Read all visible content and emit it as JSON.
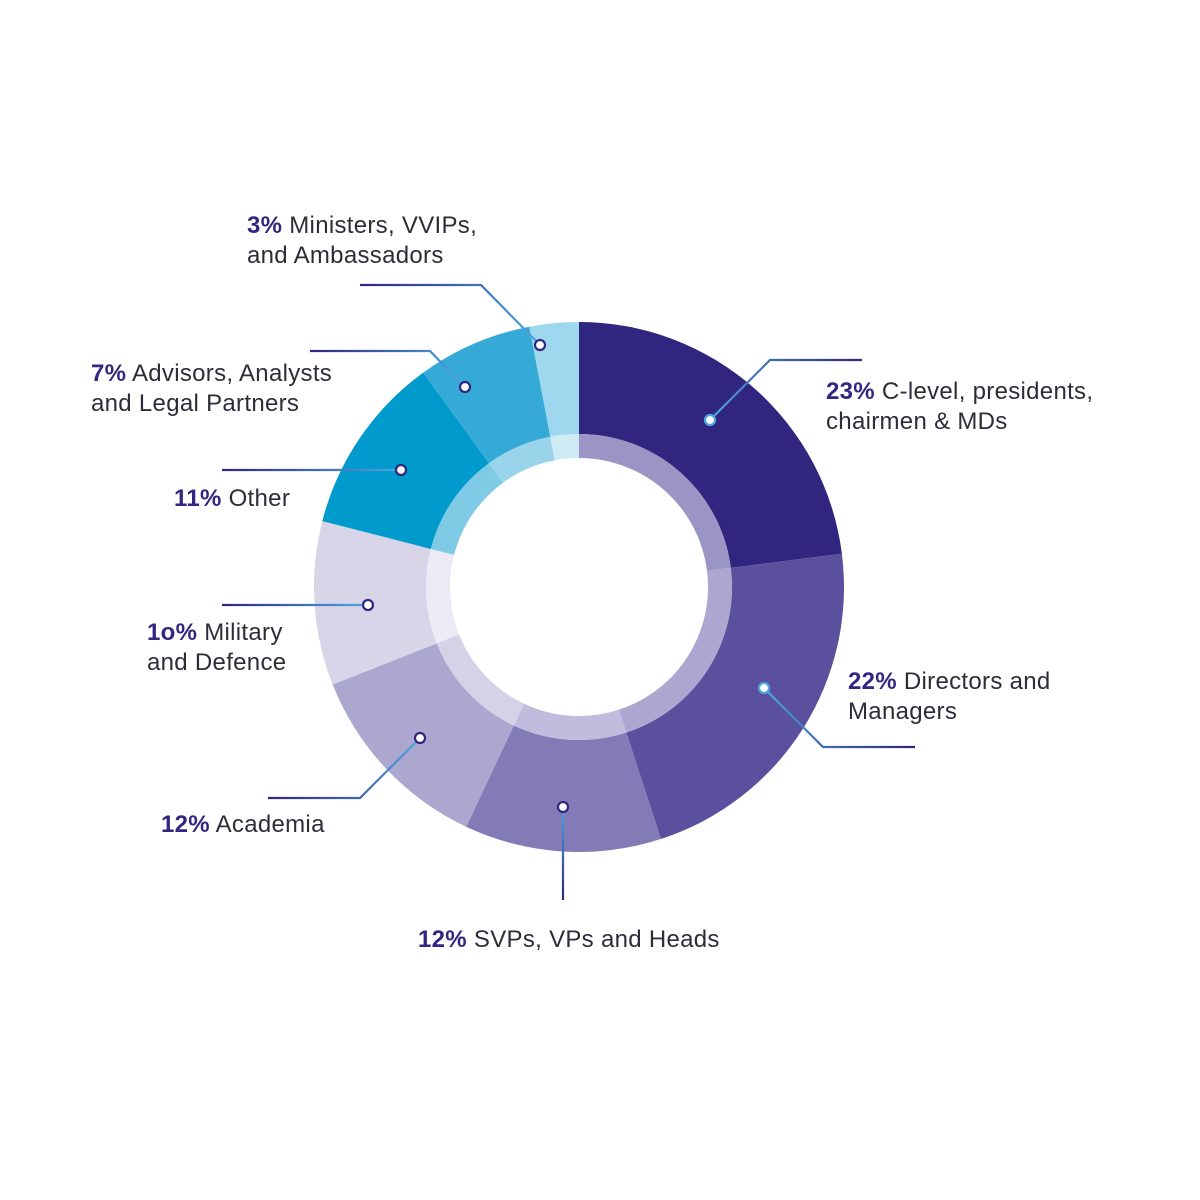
{
  "chart_data": {
    "type": "pie",
    "donut": true,
    "slices": [
      {
        "percent_label": "23%",
        "value": 23,
        "label_line1": "C-level, presidents,",
        "label_line2": "chairmen & MDs",
        "color": "#31267f",
        "inner_color": "#9b95c5"
      },
      {
        "percent_label": "22%",
        "value": 22,
        "label_line1": "Directors and",
        "label_line2": "Managers",
        "color": "#5b509d",
        "inner_color": "#aca6d0"
      },
      {
        "percent_label": "12%",
        "value": 12,
        "label_line1": "SVPs, VPs and Heads",
        "label_line2": "",
        "color": "#837bb5",
        "inner_color": "#c1bcde"
      },
      {
        "percent_label": "12%",
        "value": 12,
        "label_line1": "Academia",
        "label_line2": "",
        "color": "#aba7cf",
        "inner_color": "#d5d2e8"
      },
      {
        "percent_label": "1o%",
        "value": 10,
        "label_line1": "Military",
        "label_line2": "and Defence",
        "color": "#d8d5e9",
        "inner_color": "#eceaf4"
      },
      {
        "percent_label": "11%",
        "value": 11,
        "label_line1": "Other",
        "label_line2": "",
        "color": "#009acd",
        "inner_color": "#7fcbe6"
      },
      {
        "percent_label": "7%",
        "value": 7,
        "label_line1": "Advisors, Analysts",
        "label_line2": "and Legal Partners",
        "color": "#36aad7",
        "inner_color": "#9ad4eb"
      },
      {
        "percent_label": "3%",
        "value": 3,
        "label_line1": "Ministers, VVIPs,",
        "label_line2": "and Ambassadors",
        "color": "#9ed8ee",
        "inner_color": "#cfebf6"
      }
    ],
    "extra_slice_color": "#6cc3e8",
    "leader_dark_color": "#31267f",
    "leader_light_color": "#4ea8e0"
  }
}
